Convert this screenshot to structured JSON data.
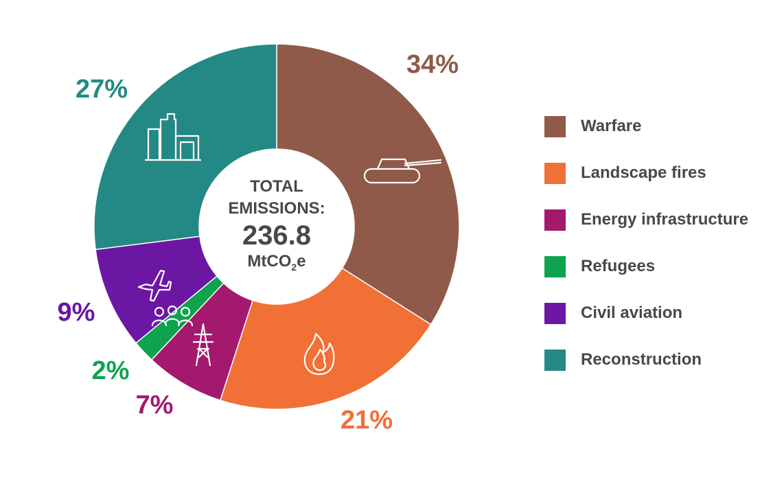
{
  "chart_data": {
    "type": "pie",
    "variant": "donut",
    "title": "",
    "center": {
      "line1": "TOTAL",
      "line2": "EMISSIONS:",
      "value": "236.8",
      "unit_main": "MtCO",
      "unit_sub": "2",
      "unit_tail": "e"
    },
    "series": [
      {
        "name": "Warfare",
        "value": 34,
        "label": "34%",
        "color": "#8F5A4A",
        "icon": "tank-icon"
      },
      {
        "name": "Landscape fires",
        "value": 21,
        "label": "21%",
        "color": "#F07036",
        "icon": "fire-icon"
      },
      {
        "name": "Energy infrastructure",
        "value": 7,
        "label": "7%",
        "color": "#A3196E",
        "icon": "power-pylon-icon"
      },
      {
        "name": "Refugees",
        "value": 2,
        "label": "2%",
        "color": "#0FA24F",
        "icon": "people-icon"
      },
      {
        "name": "Civil aviation",
        "value": 9,
        "label": "9%",
        "color": "#6B17A3",
        "icon": "airplane-icon"
      },
      {
        "name": "Reconstruction",
        "value": 27,
        "label": "27%",
        "color": "#248985",
        "icon": "buildings-icon"
      }
    ],
    "legend_position": "right"
  }
}
